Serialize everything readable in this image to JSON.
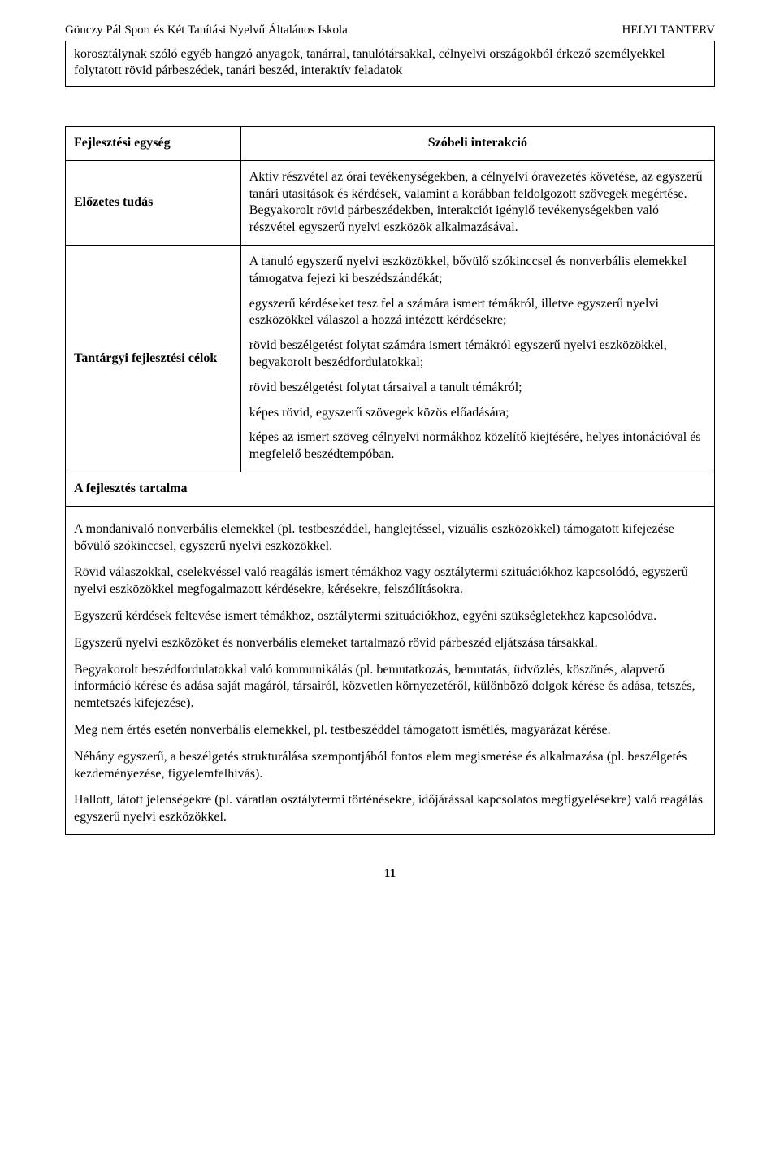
{
  "header": {
    "left": "Gönczy Pál Sport és Két Tanítási Nyelvű Általános Iskola",
    "right": "HELYI TANTERV"
  },
  "intro": "korosztálynak szóló egyéb hangzó anyagok, tanárral, tanulótársakkal, célnyelvi országokból érkező személyekkel folytatott rövid párbeszédek, tanári beszéd, interaktív feladatok",
  "table": {
    "row1": {
      "left": "Fejlesztési egység",
      "right": "Szóbeli interakció"
    },
    "row2": {
      "left": "Előzetes tudás",
      "right": "Aktív részvétel az órai tevékenységekben, a célnyelvi óravezetés követése, az egyszerű tanári utasítások és kérdések, valamint a korábban feldolgozott szövegek megértése. Begyakorolt rövid párbeszédekben, interakciót igénylő tevékenységekben való részvétel egyszerű nyelvi eszközök alkalmazásával."
    },
    "row3": {
      "left": "Tantárgyi fejlesztési célok",
      "p1": "A tanuló egyszerű nyelvi eszközökkel, bővülő szókinccsel és nonverbális elemekkel támogatva fejezi ki beszédszándékát;",
      "p2": "egyszerű kérdéseket tesz fel a számára ismert témákról, illetve egyszerű nyelvi eszközökkel válaszol a hozzá intézett kérdésekre;",
      "p3": "rövid beszélgetést folytat számára ismert témákról egyszerű nyelvi eszközökkel, begyakorolt beszédfordulatokkal;",
      "p4": "rövid beszélgetést folytat társaival a tanult témákról;",
      "p5": "képes rövid, egyszerű szövegek közös előadására;",
      "p6": "képes az ismert szöveg célnyelvi normákhoz közelítő kiejtésére, helyes intonációval és megfelelő beszédtempóban."
    },
    "subtitle": "A fejlesztés tartalma"
  },
  "content": {
    "p1": "A mondanivaló nonverbális elemekkel (pl. testbeszéddel, hanglejtéssel, vizuális eszközökkel) támogatott kifejezése bővülő szókinccsel, egyszerű nyelvi eszközökkel.",
    "p2": "Rövid válaszokkal, cselekvéssel való reagálás ismert témákhoz vagy osztálytermi szituációkhoz kapcsolódó, egyszerű nyelvi eszközökkel megfogalmazott kérdésekre, kérésekre, felszólításokra.",
    "p3": "Egyszerű kérdések feltevése ismert témákhoz, osztálytermi szituációkhoz, egyéni szükségletekhez kapcsolódva.",
    "p4": "Egyszerű nyelvi eszközöket és nonverbális elemeket tartalmazó rövid párbeszéd eljátszása társakkal.",
    "p5": "Begyakorolt beszédfordulatokkal való kommunikálás (pl. bemutatkozás, bemutatás, üdvözlés, köszönés, alapvető információ kérése és adása saját magáról, társairól, közvetlen környezetéről, különböző dolgok kérése és adása, tetszés, nemtetszés kifejezése).",
    "p6": "Meg nem értés esetén nonverbális elemekkel, pl. testbeszéddel támogatott ismétlés, magyarázat kérése.",
    "p7": "Néhány egyszerű, a beszélgetés strukturálása szempontjából fontos elem megismerése és alkalmazása (pl. beszélgetés kezdeményezése, figyelemfelhívás).",
    "p8": "Hallott, látott jelenségekre (pl. váratlan osztálytermi történésekre, időjárással kapcsolatos megfigyelésekre) való reagálás egyszerű nyelvi eszközökkel."
  },
  "pageNumber": "11"
}
